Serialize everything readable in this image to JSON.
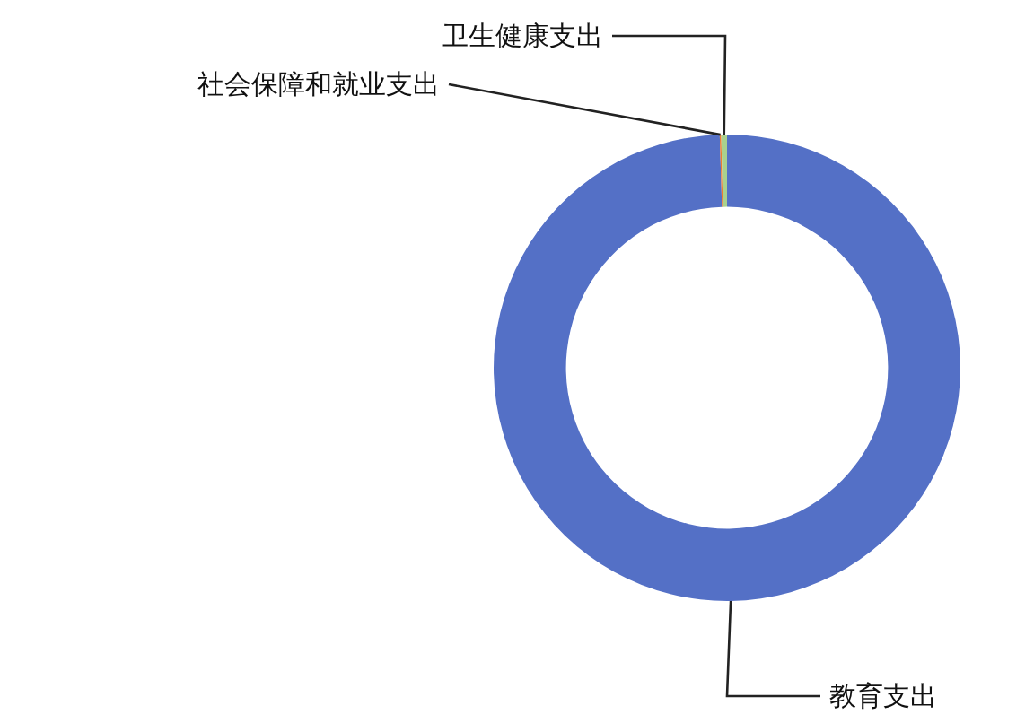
{
  "chart_data": {
    "type": "donut",
    "categories": [
      "教育支出",
      "社会保障和就业支出",
      "卫生健康支出"
    ],
    "values": [
      99.5,
      0.1,
      0.4
    ],
    "colors": [
      "#5470c6",
      "#ed7d31",
      "#a9d18e"
    ],
    "legend": false
  }
}
